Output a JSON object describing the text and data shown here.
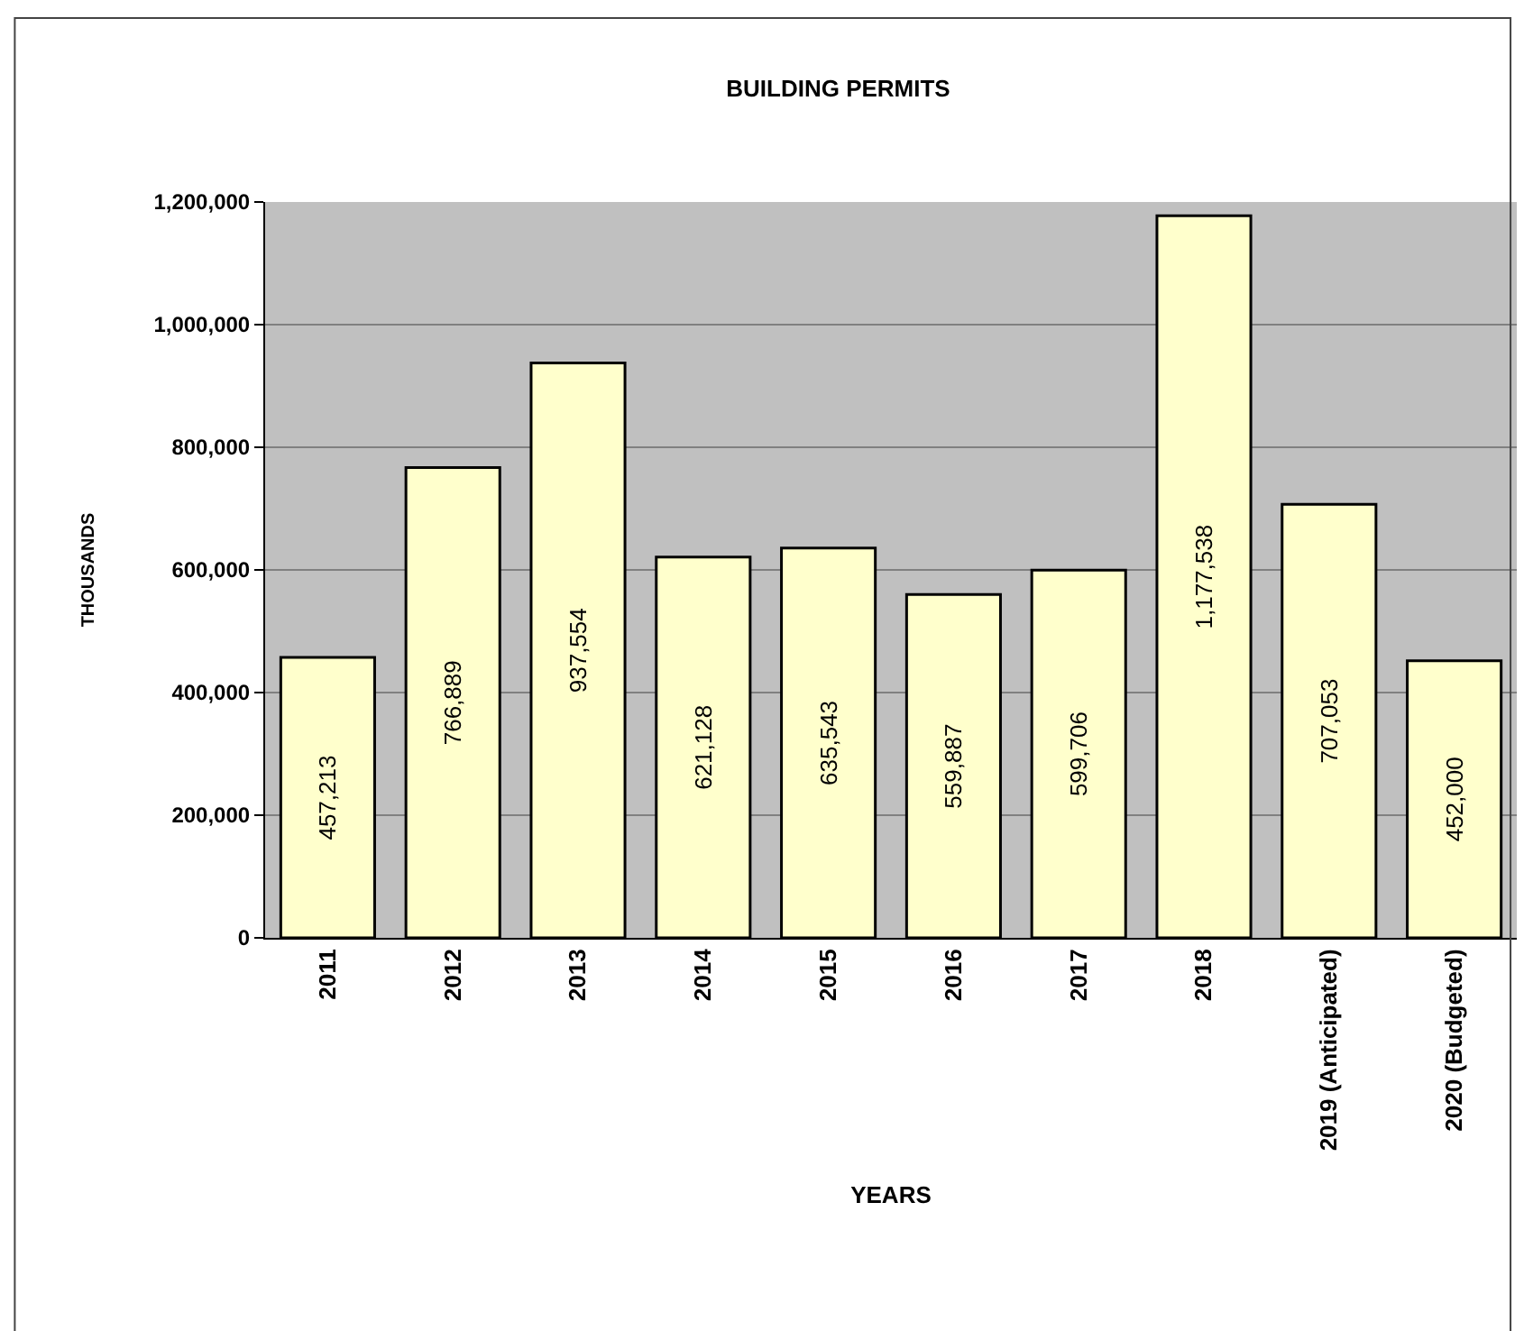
{
  "chart_data": {
    "type": "bar",
    "title": "BUILDING PERMITS",
    "xlabel": "YEARS",
    "ylabel": "THOUSANDS",
    "categories": [
      "2011",
      "2012",
      "2013",
      "2014",
      "2015",
      "2016",
      "2017",
      "2018",
      "2019 (Anticipated)",
      "2020 (Budgeted)"
    ],
    "values": [
      457213,
      766889,
      937554,
      621128,
      635543,
      559887,
      599706,
      1177538,
      707053,
      452000
    ],
    "color": "#ffffcc",
    "ylim": [
      0,
      1200000
    ],
    "yticks": [
      {
        "value": 0,
        "label": "0"
      },
      {
        "value": 200000,
        "label": "200,000"
      },
      {
        "value": 400000,
        "label": "400,000"
      },
      {
        "value": 600000,
        "label": "600,000"
      },
      {
        "value": 800000,
        "label": "800,000"
      },
      {
        "value": 1000000,
        "label": "1,000,000"
      },
      {
        "value": 1200000,
        "label": "1,200,000"
      }
    ],
    "value_labels": [
      "457,213",
      "766,889",
      "937,554",
      "621,128",
      "635,543",
      "559,887",
      "599,706",
      "1,177,538",
      "707,053",
      "452,000"
    ],
    "grid": "y"
  }
}
